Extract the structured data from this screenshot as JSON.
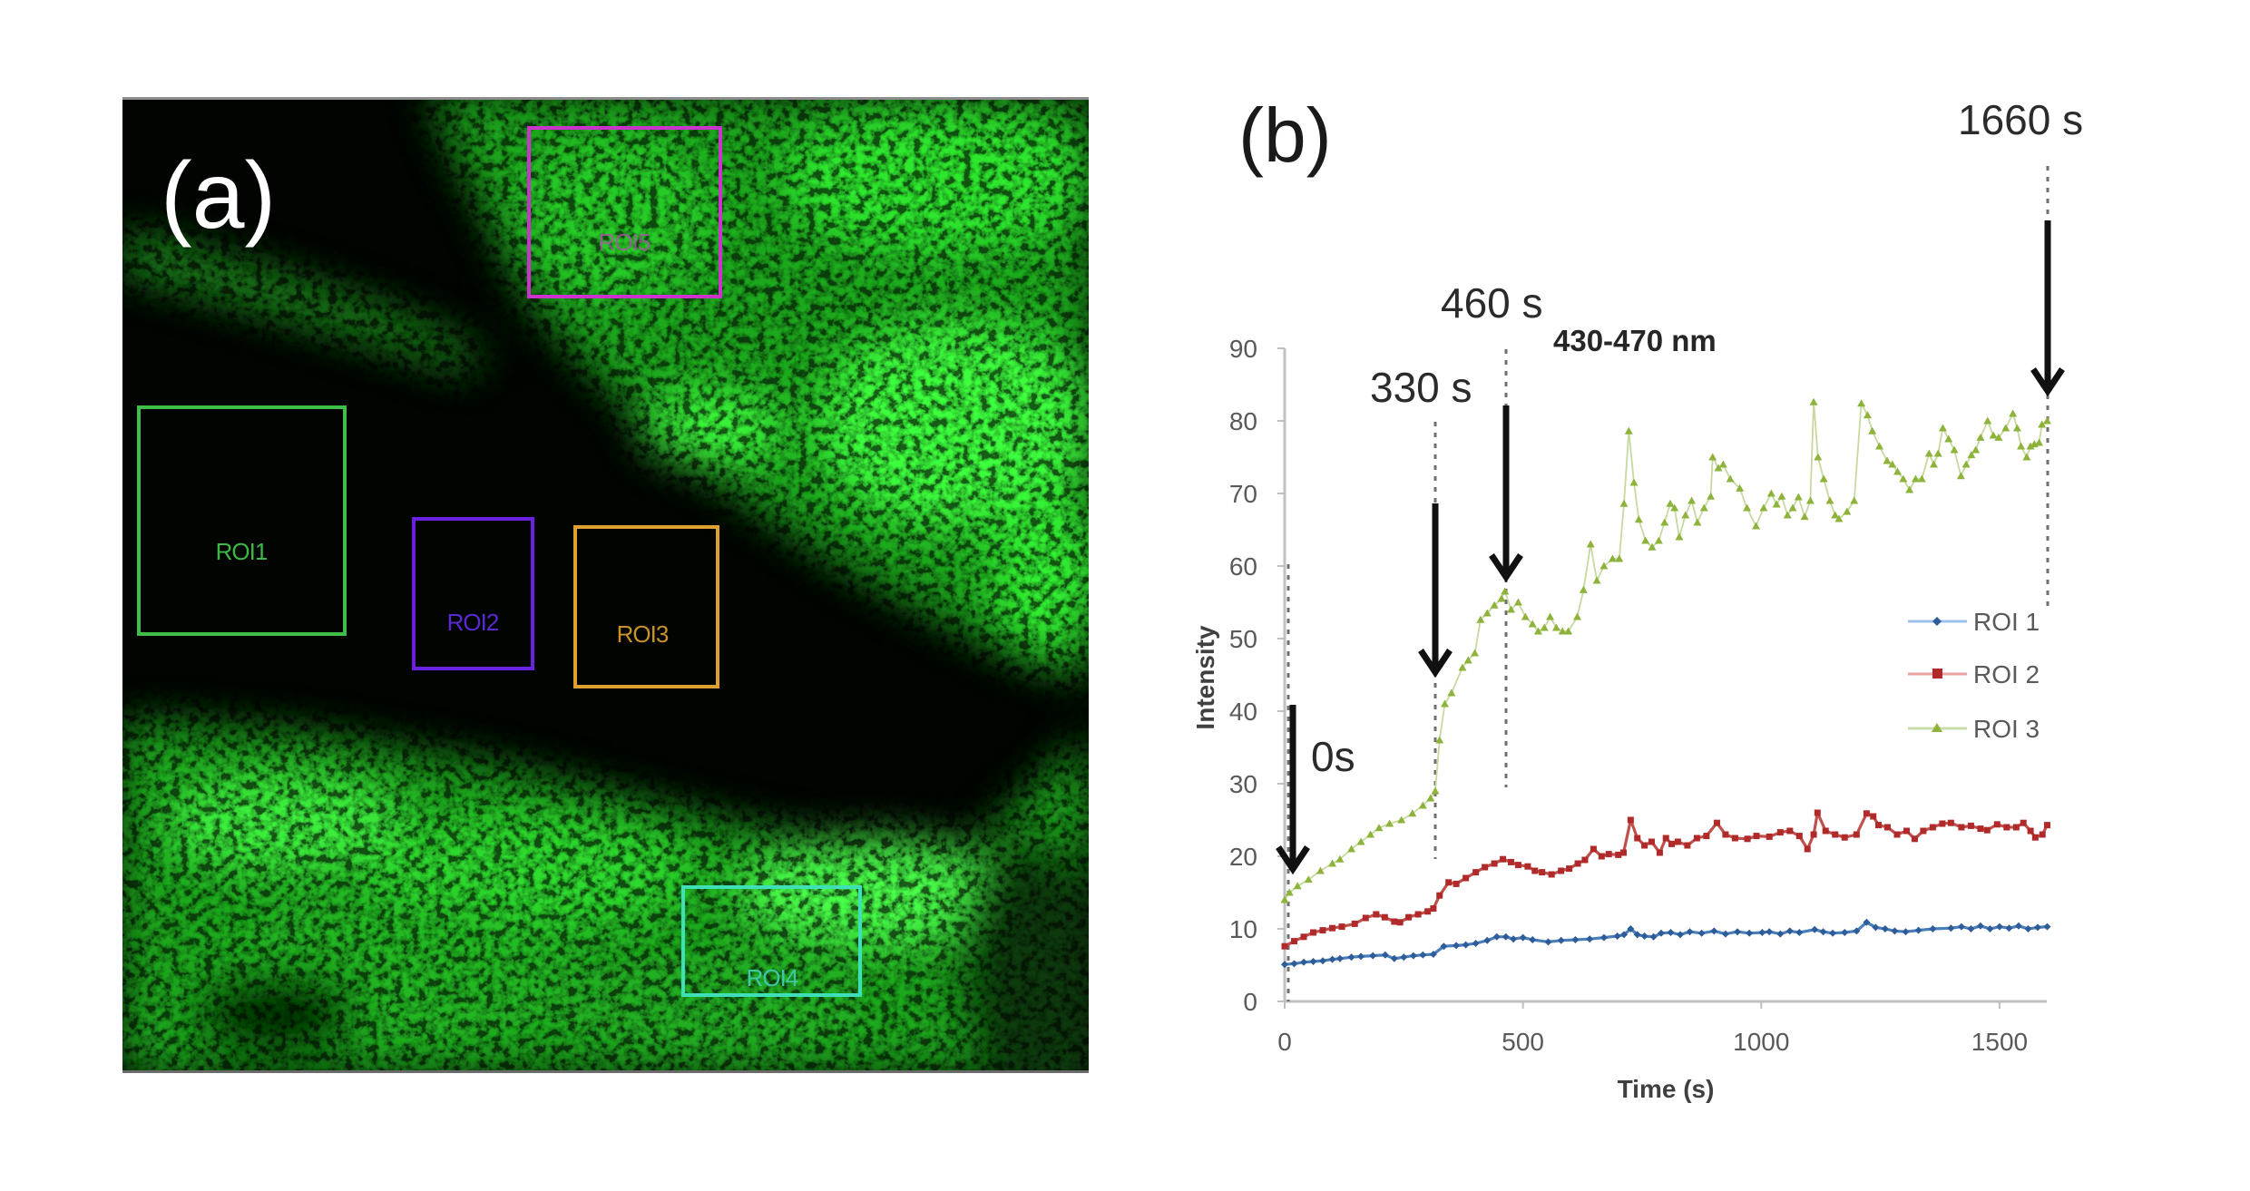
{
  "panel_a": {
    "label": "(a)",
    "rois": [
      {
        "label": "ROI1",
        "color": "#3fbf4a",
        "text_color": "#3db845"
      },
      {
        "label": "ROI2",
        "color": "#6b22e0",
        "text_color": "#5a2ad0"
      },
      {
        "label": "ROI3",
        "color": "#e0a030",
        "text_color": "#c8922a"
      },
      {
        "label": "ROI4",
        "color": "#3fe0b8",
        "text_color": "#3ec8a8"
      },
      {
        "label": "ROI5",
        "color": "#cc33cc",
        "text_color": "#b84fb0"
      }
    ]
  },
  "chart_data": {
    "type": "line",
    "panel_label": "(b)",
    "title": "",
    "xlabel": "Time (s)",
    "ylabel": "Intensity",
    "xlim": [
      0,
      1600
    ],
    "ylim": [
      0,
      90
    ],
    "xticks": [
      "0",
      "500",
      "1000",
      "1500"
    ],
    "yticks": [
      "0",
      "10",
      "20",
      "30",
      "40",
      "50",
      "60",
      "70",
      "80",
      "90"
    ],
    "grid": false,
    "legend_position": "right",
    "annotations": [
      {
        "label": "0s"
      },
      {
        "label": "330 s"
      },
      {
        "label": "460 s"
      },
      {
        "label": "1660 s"
      },
      {
        "label": "430-470 nm"
      }
    ],
    "series": [
      {
        "name": "ROI 1",
        "color": "#4a7ebb",
        "legend_line_color": "#9cc0e8",
        "marker_color": "#2e5c99",
        "marker": "diamond",
        "x": [
          0,
          20,
          40,
          60,
          80,
          100,
          116,
          140,
          160,
          185,
          211,
          230,
          250,
          270,
          290,
          312,
          334,
          360,
          380,
          401,
          425,
          445,
          464,
          480,
          500,
          520,
          553,
          580,
          610,
          640,
          670,
          698,
          712,
          726,
          740,
          755,
          774,
          790,
          810,
          830,
          850,
          875,
          901,
          925,
          950,
          975,
          1002,
          1017,
          1040,
          1060,
          1080,
          1112,
          1130,
          1150,
          1175,
          1200,
          1221,
          1240,
          1260,
          1280,
          1303,
          1330,
          1360,
          1398,
          1420,
          1440,
          1460,
          1480,
          1500,
          1520,
          1540,
          1560,
          1580,
          1600
        ],
        "y": [
          5.1,
          5.2,
          5.4,
          5.5,
          5.6,
          5.8,
          5.9,
          6.1,
          6.2,
          6.3,
          6.4,
          5.9,
          6.1,
          6.3,
          6.4,
          6.5,
          7.6,
          7.7,
          7.8,
          8,
          8.4,
          8.9,
          8.9,
          8.6,
          8.8,
          8.5,
          8.2,
          8.4,
          8.5,
          8.6,
          8.8,
          9,
          9.2,
          10,
          9.2,
          9,
          8.9,
          9.4,
          9.5,
          9.2,
          9.6,
          9.4,
          9.7,
          9.3,
          9.6,
          9.4,
          9.5,
          9.6,
          9.3,
          9.7,
          9.5,
          9.9,
          9.6,
          9.4,
          9.5,
          9.7,
          10.9,
          10.2,
          10,
          9.7,
          9.6,
          9.8,
          10,
          10.1,
          10.3,
          10,
          10.4,
          10,
          10.3,
          10.1,
          10.4,
          10,
          10.2,
          10.3
        ]
      },
      {
        "name": "ROI 2",
        "color": "#c0504d",
        "legend_line_color": "#eaa3a1",
        "marker_color": "#b02a2a",
        "marker": "square",
        "x": [
          0,
          20,
          40,
          60,
          80,
          100,
          120,
          147,
          170,
          192,
          210,
          230,
          242,
          260,
          280,
          300,
          312,
          325,
          344,
          360,
          380,
          401,
          420,
          440,
          458,
          475,
          490,
          510,
          525,
          540,
          560,
          580,
          597,
          615,
          630,
          648,
          665,
          680,
          700,
          711,
          726,
          740,
          755,
          770,
          787,
          800,
          812,
          825,
          845,
          865,
          885,
          907,
          925,
          945,
          971,
          990,
          1017,
          1040,
          1060,
          1080,
          1097,
          1110,
          1118,
          1135,
          1155,
          1175,
          1200,
          1221,
          1235,
          1246,
          1265,
          1285,
          1305,
          1322,
          1340,
          1360,
          1380,
          1398,
          1420,
          1440,
          1460,
          1474,
          1495,
          1515,
          1535,
          1550,
          1565,
          1575,
          1590,
          1600
        ],
        "y": [
          7.6,
          8.3,
          8.9,
          9.5,
          9.8,
          10.1,
          10.3,
          10.7,
          11.5,
          12,
          11.6,
          11,
          10.9,
          11.6,
          12,
          12.4,
          12.8,
          14.6,
          16.4,
          16.2,
          17,
          17.8,
          18.5,
          19,
          19.6,
          19.2,
          18.8,
          18.6,
          18,
          17.8,
          17.5,
          18,
          18.3,
          19,
          19.5,
          21,
          20,
          20.3,
          20.2,
          20.5,
          25,
          22.5,
          21.5,
          22,
          20.5,
          22.5,
          21.7,
          22,
          21.5,
          22.5,
          22.8,
          24.6,
          23,
          22.5,
          22.4,
          22.8,
          22.7,
          23.3,
          23.5,
          22.8,
          21,
          23,
          26,
          23.5,
          23,
          22.6,
          23,
          25.9,
          25.5,
          24.3,
          24,
          23,
          23.5,
          22.4,
          23.5,
          24,
          24.5,
          24.6,
          24,
          24.2,
          23.8,
          23.6,
          24.4,
          24,
          24,
          24.6,
          23.5,
          22.6,
          23,
          24.3
        ]
      },
      {
        "name": "ROI 3",
        "color": "#c6d9a0",
        "legend_line_color": "#c9d9a8",
        "marker_color": "#8db33a",
        "marker": "triangle",
        "x": [
          0,
          10,
          27,
          50,
          75,
          100,
          116,
          140,
          160,
          180,
          198,
          220,
          245,
          268,
          290,
          306,
          316,
          325,
          336,
          350,
          373,
          385,
          399,
          411,
          425,
          440,
          455,
          462,
          475,
          490,
          505,
          520,
          532,
          545,
          557,
          570,
          583,
          595,
          614,
          627,
          642,
          655,
          670,
          688,
          702,
          712,
          722,
          733,
          743,
          757,
          771,
          785,
          797,
          809,
          818,
          828,
          841,
          854,
          866,
          880,
          894,
          898,
          910,
          920,
          935,
          955,
          970,
          989,
          1005,
          1021,
          1032,
          1043,
          1055,
          1066,
          1078,
          1091,
          1103,
          1110,
          1119,
          1131,
          1144,
          1155,
          1163,
          1180,
          1195,
          1210,
          1223,
          1233,
          1248,
          1264,
          1275,
          1286,
          1298,
          1311,
          1324,
          1337,
          1352,
          1362,
          1371,
          1381,
          1393,
          1405,
          1419,
          1430,
          1441,
          1450,
          1460,
          1475,
          1487,
          1498,
          1513,
          1528,
          1537,
          1545,
          1557,
          1565,
          1573,
          1583,
          1589,
          1600
        ],
        "y": [
          14,
          15,
          15.9,
          16.8,
          18,
          19,
          19.6,
          21,
          22,
          23,
          23.9,
          24.5,
          25,
          25.9,
          27,
          28,
          29,
          36,
          41,
          42.5,
          46,
          47,
          48,
          52.6,
          53.5,
          54.6,
          55.5,
          56.5,
          54,
          55,
          53,
          52,
          51,
          51.5,
          53,
          51.5,
          51,
          51,
          53,
          56.7,
          63,
          58,
          60,
          61,
          61,
          68.6,
          78.6,
          71.5,
          66.4,
          63.5,
          62.6,
          63.5,
          66,
          68.6,
          68,
          64,
          67,
          69,
          66,
          68,
          69.6,
          75,
          73.5,
          74,
          72,
          70.7,
          68,
          65.5,
          68,
          70,
          68.5,
          69.6,
          67,
          68,
          69.5,
          66.8,
          69,
          82.6,
          75,
          72,
          69,
          67,
          66.5,
          67.5,
          69,
          82.4,
          80.8,
          78.6,
          76.5,
          74.5,
          74,
          73,
          72,
          70.5,
          72,
          72,
          75.5,
          74,
          75.5,
          79,
          77.5,
          76,
          72.4,
          74,
          75.3,
          76,
          77.7,
          80,
          78,
          77.7,
          79,
          81,
          79,
          76.5,
          75,
          76.5,
          76.8,
          77,
          79.5,
          80
        ]
      }
    ]
  }
}
